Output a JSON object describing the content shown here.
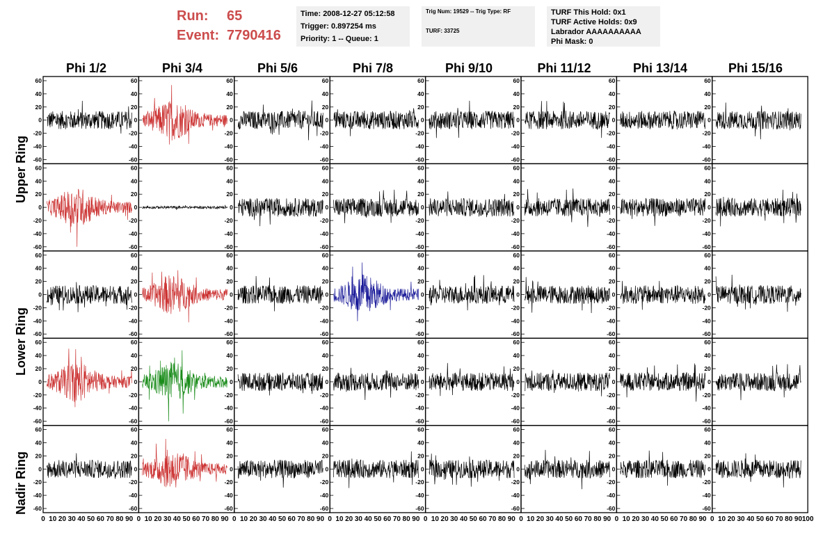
{
  "header": {
    "run_label": "Run:",
    "run_value": "65",
    "event_label": "Event:",
    "event_value": "7790416"
  },
  "info_box_1": {
    "time": "Time: 2008-12-27 05:12:58",
    "trigger": "Trigger: 0.897254 ms",
    "priority": "Priority: 1 -- Queue: 1"
  },
  "info_box_2": {
    "trig": "Trig Num: 19529 -- Trig Type: RF",
    "turf": "TURF: 33725"
  },
  "info_box_3": {
    "hold": "TURF This Hold: 0x1",
    "active": "TURF Active Holds: 0x9",
    "labrador": "Labrador AAAAAAAAAA",
    "phimask": "Phi Mask: 0"
  },
  "columns": [
    "Phi 1/2",
    "Phi 3/4",
    "Phi 5/6",
    "Phi 7/8",
    "Phi 9/10",
    "Phi 11/12",
    "Phi 13/14",
    "Phi 15/16"
  ],
  "rings": [
    "Upper Ring",
    "Lower Ring",
    "Nadir Ring"
  ],
  "colors": {
    "default": "#000000",
    "red": "#cc3333",
    "blue": "#1a1a99",
    "green": "#1a8c1a"
  },
  "chart_data": {
    "type": "line",
    "xlim": [
      0,
      100
    ],
    "ylim": [
      -60,
      60
    ],
    "y_ticks": [
      "60",
      "40",
      "20",
      "0",
      "-20",
      "-40",
      "-60"
    ],
    "x_ticks": [
      "0",
      "10",
      "20",
      "30",
      "40",
      "50",
      "60",
      "70",
      "80",
      "90",
      "100"
    ],
    "panels": [
      [
        "black",
        "red",
        "black",
        "black",
        "black",
        "black",
        "black",
        "black"
      ],
      [
        "red",
        "black-flat",
        "black",
        "black",
        "black",
        "black",
        "black",
        "black"
      ],
      [
        "black",
        "red",
        "black",
        "blue",
        "black",
        "black",
        "black",
        "black"
      ],
      [
        "red",
        "green",
        "black",
        "black",
        "black",
        "black",
        "black",
        "black"
      ],
      [
        "black",
        "red",
        "black",
        "black",
        "black",
        "black",
        "black",
        "black"
      ]
    ]
  }
}
